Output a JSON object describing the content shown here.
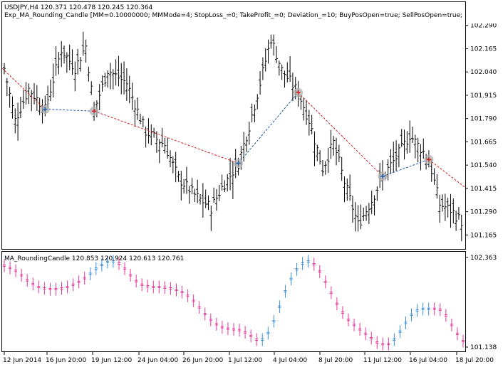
{
  "header": {
    "symbol_line": "USDJPY,H4  120.371 120.478 120.245 120.364",
    "expert_line": "Exp_MA_Rounding_Candle [MM=0.10000000; MMMode=4; StopLoss_=0; TakeProfit_=0; Deviation_=10; BuyPosOpen=true; SellPosOpen=true; BuyPosClose=true"
  },
  "indicator": {
    "title": "MA_RoundingCandle 120.853 120.924 120.613 120.761"
  },
  "colors": {
    "frame": "#000000",
    "candle": "#000000",
    "buy_arrow": "#1e5aa8",
    "sell_arrow": "#d42020",
    "buy_line": "#1e5aa8",
    "sell_line": "#d42020",
    "marker_halo": "#b0b0b0",
    "ma_up": "#3a8fe0",
    "ma_down": "#e8379a"
  },
  "chart_data": [
    {
      "type": "candlestick",
      "panel": "main",
      "ylim": [
        101.09,
        102.415
      ],
      "y_ticks": [
        "102.290",
        "102.165",
        "102.040",
        "101.915",
        "101.790",
        "101.665",
        "101.540",
        "101.415",
        "101.290",
        "101.165"
      ],
      "price_low": 101.14,
      "price_high": 102.37,
      "trades": [
        {
          "bar": 15,
          "price": 101.84,
          "side": "buy"
        },
        {
          "bar": 33,
          "price": 101.83,
          "side": "sell"
        },
        {
          "bar": 86,
          "price": 101.55,
          "side": "buy"
        },
        {
          "bar": 108,
          "price": 101.93,
          "side": "sell"
        },
        {
          "bar": 139,
          "price": 101.48,
          "side": "buy"
        },
        {
          "bar": 156,
          "price": 101.57,
          "side": "sell"
        }
      ]
    },
    {
      "type": "line",
      "panel": "indicator",
      "ylim": [
        101.138,
        102.363
      ],
      "y_ticks": [
        "102.363",
        "101.138"
      ],
      "values": [
        102.25,
        102.22,
        102.18,
        102.12,
        102.05,
        102.0,
        101.96,
        101.94,
        101.93,
        101.93,
        101.94,
        101.96,
        101.99,
        102.03,
        102.08,
        102.14,
        102.21,
        102.26,
        102.3,
        102.31,
        102.28,
        102.21,
        102.12,
        102.04,
        101.99,
        101.97,
        101.96,
        101.96,
        101.95,
        101.94,
        101.92,
        101.89,
        101.84,
        101.77,
        101.68,
        101.59,
        101.51,
        101.45,
        101.41,
        101.39,
        101.38,
        101.37,
        101.34,
        101.29,
        101.24,
        101.24,
        101.33,
        101.49,
        101.69,
        101.9,
        102.07,
        102.2,
        102.28,
        102.31,
        102.27,
        102.17,
        102.03,
        101.88,
        101.73,
        101.61,
        101.51,
        101.44,
        101.38,
        101.32,
        101.26,
        101.2,
        101.18,
        101.18,
        101.24,
        101.35,
        101.47,
        101.58,
        101.64,
        101.66,
        101.66,
        101.66,
        101.65,
        101.57,
        101.44,
        101.32,
        101.22
      ],
      "colors": [
        "down",
        "down",
        "down",
        "down",
        "down",
        "down",
        "down",
        "down",
        "down",
        "down",
        "down",
        "down",
        "down",
        "down",
        "down",
        "up",
        "up",
        "up",
        "up",
        "up",
        "down",
        "down",
        "down",
        "down",
        "down",
        "down",
        "down",
        "down",
        "down",
        "down",
        "down",
        "down",
        "down",
        "down",
        "down",
        "down",
        "down",
        "down",
        "down",
        "down",
        "down",
        "down",
        "down",
        "down",
        "down",
        "up",
        "up",
        "up",
        "up",
        "up",
        "up",
        "up",
        "up",
        "up",
        "down",
        "down",
        "down",
        "down",
        "down",
        "down",
        "down",
        "down",
        "down",
        "down",
        "down",
        "down",
        "down",
        "down",
        "up",
        "up",
        "up",
        "up",
        "up",
        "up",
        "up",
        "down",
        "down",
        "down",
        "down",
        "down",
        "down"
      ]
    }
  ],
  "x_axis": {
    "labels": [
      "12 Jun 2014",
      "16 Jun 20:00",
      "19 Jun 12:00",
      "24 Jun 04:00",
      "26 Jun 20:00",
      "1 Jul 12:00",
      "4 Jul 04:00",
      "8 Jul 20:00",
      "11 Jul 12:00",
      "16 Jul 04:00",
      "18 Jul 20:00"
    ]
  }
}
